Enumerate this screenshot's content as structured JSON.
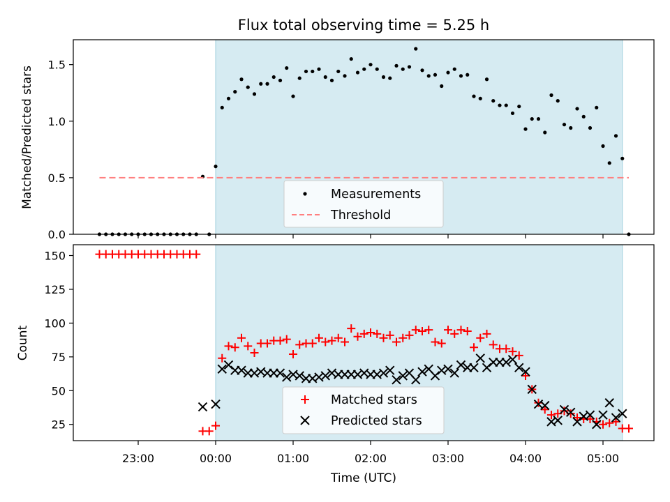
{
  "chart_data": {
    "type": "scatter",
    "title": "Flux total observing time = 5.25 h",
    "xlabel": "Time (UTC)",
    "x_ticks": [
      "23:00",
      "00:00",
      "01:00",
      "02:00",
      "03:00",
      "04:00",
      "05:00"
    ],
    "observing_window": {
      "start": "00:00",
      "end": "05:15",
      "color": "#add8e6"
    },
    "panels": [
      {
        "ylabel": "Matched/Predicted stars",
        "ylim": [
          0,
          1.72
        ],
        "y_ticks": [
          "0.0",
          "0.5",
          "1.0",
          "1.5"
        ],
        "legend_position": "bottom-center",
        "series": [
          {
            "name": "Measurements",
            "marker": "dot",
            "color": "#000000",
            "points": [
              [
                "22:30",
                0
              ],
              [
                "22:35",
                0
              ],
              [
                "22:40",
                0
              ],
              [
                "22:45",
                0
              ],
              [
                "22:50",
                0
              ],
              [
                "22:55",
                0
              ],
              [
                "23:00",
                0
              ],
              [
                "23:05",
                0
              ],
              [
                "23:10",
                0
              ],
              [
                "23:15",
                0
              ],
              [
                "23:20",
                0
              ],
              [
                "23:25",
                0
              ],
              [
                "23:30",
                0
              ],
              [
                "23:35",
                0
              ],
              [
                "23:40",
                0
              ],
              [
                "23:45",
                0
              ],
              [
                "23:50",
                0.51
              ],
              [
                "23:55",
                0
              ],
              [
                "00:00",
                0.6
              ],
              [
                "00:05",
                1.12
              ],
              [
                "00:10",
                1.2
              ],
              [
                "00:15",
                1.26
              ],
              [
                "00:20",
                1.37
              ],
              [
                "00:25",
                1.3
              ],
              [
                "00:30",
                1.24
              ],
              [
                "00:35",
                1.33
              ],
              [
                "00:40",
                1.33
              ],
              [
                "00:45",
                1.39
              ],
              [
                "00:50",
                1.36
              ],
              [
                "00:55",
                1.47
              ],
              [
                "01:00",
                1.22
              ],
              [
                "01:05",
                1.38
              ],
              [
                "01:10",
                1.44
              ],
              [
                "01:15",
                1.44
              ],
              [
                "01:20",
                1.46
              ],
              [
                "01:25",
                1.39
              ],
              [
                "01:30",
                1.36
              ],
              [
                "01:35",
                1.44
              ],
              [
                "01:40",
                1.4
              ],
              [
                "01:45",
                1.55
              ],
              [
                "01:50",
                1.43
              ],
              [
                "01:55",
                1.46
              ],
              [
                "02:00",
                1.5
              ],
              [
                "02:05",
                1.46
              ],
              [
                "02:10",
                1.39
              ],
              [
                "02:15",
                1.38
              ],
              [
                "02:20",
                1.49
              ],
              [
                "02:25",
                1.46
              ],
              [
                "02:30",
                1.48
              ],
              [
                "02:35",
                1.64
              ],
              [
                "02:40",
                1.45
              ],
              [
                "02:45",
                1.4
              ],
              [
                "02:50",
                1.41
              ],
              [
                "02:55",
                1.31
              ],
              [
                "03:00",
                1.43
              ],
              [
                "03:05",
                1.46
              ],
              [
                "03:10",
                1.4
              ],
              [
                "03:15",
                1.41
              ],
              [
                "03:20",
                1.22
              ],
              [
                "03:25",
                1.2
              ],
              [
                "03:30",
                1.37
              ],
              [
                "03:35",
                1.18
              ],
              [
                "03:40",
                1.14
              ],
              [
                "03:45",
                1.14
              ],
              [
                "03:50",
                1.07
              ],
              [
                "03:55",
                1.13
              ],
              [
                "04:00",
                0.93
              ],
              [
                "04:05",
                1.02
              ],
              [
                "04:10",
                1.02
              ],
              [
                "04:15",
                0.9
              ],
              [
                "04:20",
                1.23
              ],
              [
                "04:25",
                1.18
              ],
              [
                "04:30",
                0.97
              ],
              [
                "04:35",
                0.94
              ],
              [
                "04:40",
                1.11
              ],
              [
                "04:45",
                1.04
              ],
              [
                "04:50",
                0.94
              ],
              [
                "04:55",
                1.12
              ],
              [
                "05:00",
                0.78
              ],
              [
                "05:05",
                0.63
              ],
              [
                "05:10",
                0.87
              ],
              [
                "05:15",
                0.67
              ],
              [
                "05:20",
                0
              ]
            ]
          },
          {
            "name": "Threshold",
            "marker": "dashed-line",
            "color": "#ff7f7f",
            "points": [
              [
                "22:30",
                0.5
              ],
              [
                "05:20",
                0.5
              ]
            ]
          }
        ]
      },
      {
        "ylabel": "Count",
        "ylim": [
          13,
          158
        ],
        "y_ticks": [
          "25",
          "50",
          "75",
          "100",
          "125",
          "150"
        ],
        "legend_position": "bottom-center",
        "series": [
          {
            "name": "Matched stars",
            "marker": "plus",
            "color": "#ff0000",
            "points": [
              [
                "22:30",
                151
              ],
              [
                "22:35",
                151
              ],
              [
                "22:40",
                151
              ],
              [
                "22:45",
                151
              ],
              [
                "22:50",
                151
              ],
              [
                "22:55",
                151
              ],
              [
                "23:00",
                151
              ],
              [
                "23:05",
                151
              ],
              [
                "23:10",
                151
              ],
              [
                "23:15",
                151
              ],
              [
                "23:20",
                151
              ],
              [
                "23:25",
                151
              ],
              [
                "23:30",
                151
              ],
              [
                "23:35",
                151
              ],
              [
                "23:40",
                151
              ],
              [
                "23:45",
                151
              ],
              [
                "23:50",
                20
              ],
              [
                "23:55",
                20
              ],
              [
                "00:00",
                24
              ],
              [
                "00:05",
                74
              ],
              [
                "00:10",
                83
              ],
              [
                "00:15",
                82
              ],
              [
                "00:20",
                89
              ],
              [
                "00:25",
                83
              ],
              [
                "00:30",
                78
              ],
              [
                "00:35",
                85
              ],
              [
                "00:40",
                85
              ],
              [
                "00:45",
                87
              ],
              [
                "00:50",
                87
              ],
              [
                "00:55",
                88
              ],
              [
                "01:00",
                77
              ],
              [
                "01:05",
                84
              ],
              [
                "01:10",
                85
              ],
              [
                "01:15",
                85
              ],
              [
                "01:20",
                89
              ],
              [
                "01:25",
                86
              ],
              [
                "01:30",
                87
              ],
              [
                "01:35",
                89
              ],
              [
                "01:40",
                86
              ],
              [
                "01:45",
                96
              ],
              [
                "01:50",
                90
              ],
              [
                "01:55",
                92
              ],
              [
                "02:00",
                93
              ],
              [
                "02:05",
                92
              ],
              [
                "02:10",
                89
              ],
              [
                "02:15",
                91
              ],
              [
                "02:20",
                86
              ],
              [
                "02:25",
                89
              ],
              [
                "02:30",
                91
              ],
              [
                "02:35",
                95
              ],
              [
                "02:40",
                94
              ],
              [
                "02:45",
                95
              ],
              [
                "02:50",
                86
              ],
              [
                "02:55",
                85
              ],
              [
                "03:00",
                95
              ],
              [
                "03:05",
                92
              ],
              [
                "03:10",
                95
              ],
              [
                "03:15",
                94
              ],
              [
                "03:20",
                82
              ],
              [
                "03:25",
                89
              ],
              [
                "03:30",
                92
              ],
              [
                "03:35",
                84
              ],
              [
                "03:40",
                81
              ],
              [
                "03:45",
                81
              ],
              [
                "03:50",
                79
              ],
              [
                "03:55",
                76
              ],
              [
                "04:00",
                61
              ],
              [
                "04:05",
                51
              ],
              [
                "04:10",
                41
              ],
              [
                "04:15",
                36
              ],
              [
                "04:20",
                32
              ],
              [
                "04:25",
                33
              ],
              [
                "04:30",
                35
              ],
              [
                "04:35",
                33
              ],
              [
                "04:40",
                30
              ],
              [
                "04:45",
                29
              ],
              [
                "04:50",
                29
              ],
              [
                "04:55",
                27
              ],
              [
                "05:00",
                25
              ],
              [
                "05:05",
                26
              ],
              [
                "05:10",
                27
              ],
              [
                "05:15",
                22
              ],
              [
                "05:20",
                22
              ]
            ]
          },
          {
            "name": "Predicted stars",
            "marker": "x",
            "color": "#000000",
            "points": [
              [
                "23:50",
                38
              ],
              [
                "00:00",
                40
              ],
              [
                "00:05",
                66
              ],
              [
                "00:10",
                69
              ],
              [
                "00:15",
                65
              ],
              [
                "00:20",
                65
              ],
              [
                "00:25",
                63
              ],
              [
                "00:30",
                63
              ],
              [
                "00:35",
                64
              ],
              [
                "00:40",
                63
              ],
              [
                "00:45",
                63
              ],
              [
                "00:50",
                63
              ],
              [
                "00:55",
                60
              ],
              [
                "01:00",
                62
              ],
              [
                "01:05",
                61
              ],
              [
                "01:10",
                59
              ],
              [
                "01:15",
                59
              ],
              [
                "01:20",
                60
              ],
              [
                "01:25",
                61
              ],
              [
                "01:30",
                63
              ],
              [
                "01:35",
                62
              ],
              [
                "01:40",
                62
              ],
              [
                "01:45",
                62
              ],
              [
                "01:50",
                62
              ],
              [
                "01:55",
                63
              ],
              [
                "02:00",
                62
              ],
              [
                "02:05",
                62
              ],
              [
                "02:10",
                63
              ],
              [
                "02:15",
                65
              ],
              [
                "02:20",
                58
              ],
              [
                "02:25",
                61
              ],
              [
                "02:30",
                63
              ],
              [
                "02:35",
                58
              ],
              [
                "02:40",
                64
              ],
              [
                "02:45",
                66
              ],
              [
                "02:50",
                61
              ],
              [
                "02:55",
                65
              ],
              [
                "03:00",
                66
              ],
              [
                "03:05",
                63
              ],
              [
                "03:10",
                69
              ],
              [
                "03:15",
                67
              ],
              [
                "03:20",
                67
              ],
              [
                "03:25",
                74
              ],
              [
                "03:30",
                67
              ],
              [
                "03:35",
                71
              ],
              [
                "03:40",
                71
              ],
              [
                "03:45",
                71
              ],
              [
                "03:50",
                73
              ],
              [
                "03:55",
                67
              ],
              [
                "04:00",
                64
              ],
              [
                "04:05",
                51
              ],
              [
                "04:10",
                40
              ],
              [
                "04:15",
                39
              ],
              [
                "04:20",
                27
              ],
              [
                "04:25",
                28
              ],
              [
                "04:30",
                36
              ],
              [
                "04:35",
                34
              ],
              [
                "04:40",
                27
              ],
              [
                "04:45",
                31
              ],
              [
                "04:50",
                32
              ],
              [
                "04:55",
                25
              ],
              [
                "05:00",
                32
              ],
              [
                "05:05",
                41
              ],
              [
                "05:10",
                30
              ],
              [
                "05:15",
                33
              ]
            ]
          }
        ]
      }
    ]
  }
}
